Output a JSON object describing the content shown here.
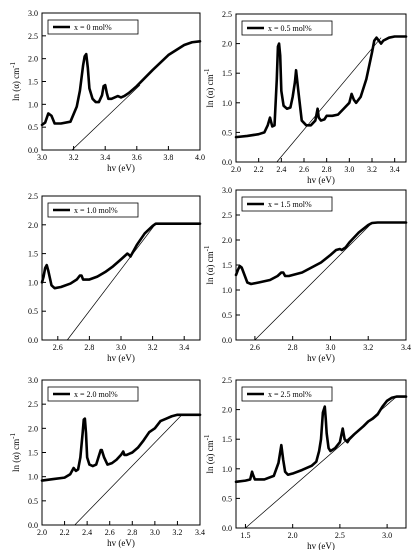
{
  "chart_data": [
    {
      "type": "line",
      "xlabel": "hv (eV)",
      "ylabel": "ln (α) cm",
      "ylabel_sup": "-1",
      "legend": {
        "label": "x = 0 mol%",
        "placement": "top-left"
      },
      "xlim": [
        3.0,
        4.0
      ],
      "ylim": [
        0.0,
        3.0
      ],
      "xticks": [
        "3.0",
        "3.2",
        "3.4",
        "3.6",
        "3.8",
        "4.0"
      ],
      "yticks": [
        "0.0",
        "0.5",
        "1.0",
        "1.5",
        "2.0",
        "2.5",
        "3.0"
      ],
      "series": [
        {
          "x": [
            3.0,
            3.02,
            3.04,
            3.06,
            3.08,
            3.12,
            3.18,
            3.22,
            3.24,
            3.26,
            3.27,
            3.28,
            3.29,
            3.3,
            3.32,
            3.34,
            3.36,
            3.38,
            3.39,
            3.4,
            3.41,
            3.42,
            3.44,
            3.46,
            3.48,
            3.5,
            3.52,
            3.55,
            3.6,
            3.7,
            3.8,
            3.9,
            3.95,
            4.0
          ],
          "y": [
            0.55,
            0.6,
            0.8,
            0.75,
            0.58,
            0.58,
            0.62,
            0.95,
            1.3,
            1.85,
            2.05,
            2.1,
            1.8,
            1.35,
            1.12,
            1.05,
            1.05,
            1.2,
            1.4,
            1.42,
            1.25,
            1.12,
            1.12,
            1.15,
            1.18,
            1.15,
            1.18,
            1.25,
            1.4,
            1.75,
            2.08,
            2.3,
            2.36,
            2.38
          ]
        }
      ],
      "fit_line": {
        "x": [
          3.19,
          3.62
        ],
        "y": [
          0.0,
          1.42
        ]
      }
    },
    {
      "type": "line",
      "xlabel": "hv (eV)",
      "ylabel": "ln (α) cm",
      "ylabel_sup": "-1",
      "legend": {
        "label": "x = 0.5 mol%",
        "placement": "top-left"
      },
      "xlim": [
        2.0,
        3.5
      ],
      "ylim": [
        0.0,
        2.5
      ],
      "xticks": [
        "2.0",
        "2.2",
        "2.4",
        "2.6",
        "2.8",
        "3.0",
        "3.2",
        "3.4"
      ],
      "yticks": [
        "0.0",
        "0.5",
        "1.0",
        "1.5",
        "2.0",
        "2.5"
      ],
      "series": [
        {
          "x": [
            2.0,
            2.1,
            2.2,
            2.25,
            2.28,
            2.3,
            2.32,
            2.34,
            2.36,
            2.37,
            2.38,
            2.39,
            2.4,
            2.42,
            2.45,
            2.48,
            2.5,
            2.52,
            2.53,
            2.55,
            2.58,
            2.62,
            2.66,
            2.7,
            2.72,
            2.73,
            2.75,
            2.78,
            2.8,
            2.85,
            2.9,
            2.95,
            3.0,
            3.02,
            3.04,
            3.06,
            3.1,
            3.15,
            3.2,
            3.22,
            3.24,
            3.26,
            3.28,
            3.3,
            3.35,
            3.4,
            3.5
          ],
          "y": [
            0.42,
            0.44,
            0.47,
            0.5,
            0.62,
            0.75,
            0.6,
            0.62,
            1.4,
            1.95,
            2.0,
            1.8,
            1.2,
            0.95,
            0.9,
            0.92,
            1.1,
            1.35,
            1.55,
            1.2,
            0.7,
            0.62,
            0.62,
            0.7,
            0.9,
            0.75,
            0.7,
            0.72,
            0.78,
            0.78,
            0.8,
            0.9,
            1.0,
            1.15,
            1.05,
            1.0,
            1.1,
            1.4,
            1.85,
            2.05,
            2.1,
            2.05,
            2.0,
            2.05,
            2.1,
            2.12,
            2.12
          ]
        }
      ],
      "fit_line": {
        "x": [
          2.36,
          3.28
        ],
        "y": [
          0.0,
          2.1
        ]
      }
    },
    {
      "type": "line",
      "xlabel": "hv (eV)",
      "ylabel": "",
      "legend": {
        "label": "x = 1.0 mol%",
        "placement": "top-left"
      },
      "xlim": [
        2.5,
        3.5
      ],
      "ylim": [
        0.0,
        2.5
      ],
      "xticks": [
        "2.6",
        "2.8",
        "3.0",
        "3.2",
        "3.4"
      ],
      "yticks": [
        "0.0",
        "0.5",
        "1.0",
        "1.5",
        "2.0",
        "2.5"
      ],
      "series": [
        {
          "x": [
            2.5,
            2.51,
            2.52,
            2.53,
            2.54,
            2.56,
            2.58,
            2.62,
            2.68,
            2.72,
            2.74,
            2.75,
            2.76,
            2.78,
            2.8,
            2.85,
            2.9,
            2.95,
            3.0,
            3.02,
            3.04,
            3.05,
            3.06,
            3.08,
            3.1,
            3.15,
            3.2,
            3.22,
            3.24,
            3.3,
            3.4,
            3.5
          ],
          "y": [
            1.0,
            1.1,
            1.25,
            1.3,
            1.2,
            0.95,
            0.9,
            0.92,
            0.98,
            1.05,
            1.12,
            1.12,
            1.05,
            1.05,
            1.05,
            1.1,
            1.18,
            1.28,
            1.4,
            1.45,
            1.5,
            1.48,
            1.45,
            1.55,
            1.65,
            1.85,
            1.98,
            2.02,
            2.02,
            2.02,
            2.02,
            2.02
          ]
        }
      ],
      "fit_line": {
        "x": [
          2.66,
          3.22
        ],
        "y": [
          0.0,
          2.02
        ]
      }
    },
    {
      "type": "line",
      "xlabel": "hv (eV)",
      "ylabel": "ln (α) cm",
      "ylabel_sup": "-1",
      "legend": {
        "label": "x = 1.5 mol%",
        "placement": "top-left"
      },
      "xlim": [
        2.5,
        3.4
      ],
      "ylim": [
        0.0,
        3.0
      ],
      "xticks": [
        "2.6",
        "2.8",
        "3.0",
        "3.2",
        "3.4"
      ],
      "yticks": [
        "0.0",
        "0.5",
        "1.0",
        "1.5",
        "2.0",
        "2.5",
        "3.0"
      ],
      "series": [
        {
          "x": [
            2.5,
            2.51,
            2.52,
            2.53,
            2.54,
            2.56,
            2.58,
            2.62,
            2.68,
            2.72,
            2.74,
            2.75,
            2.76,
            2.78,
            2.8,
            2.85,
            2.9,
            2.95,
            3.0,
            3.03,
            3.05,
            3.06,
            3.08,
            3.1,
            3.15,
            3.2,
            3.22,
            3.25,
            3.3,
            3.4
          ],
          "y": [
            1.3,
            1.4,
            1.48,
            1.45,
            1.35,
            1.15,
            1.12,
            1.15,
            1.2,
            1.28,
            1.35,
            1.35,
            1.28,
            1.28,
            1.3,
            1.35,
            1.45,
            1.55,
            1.7,
            1.8,
            1.82,
            1.8,
            1.85,
            1.95,
            2.15,
            2.3,
            2.34,
            2.35,
            2.35,
            2.35
          ]
        }
      ],
      "fit_line": {
        "x": [
          2.6,
          3.22
        ],
        "y": [
          0.0,
          2.34
        ]
      }
    },
    {
      "type": "line",
      "xlabel": "hv (eV)",
      "ylabel": "ln (α) cm",
      "ylabel_sup": "-1",
      "legend": {
        "label": "x = 2.0 mol%",
        "placement": "top-left"
      },
      "xlim": [
        2.0,
        3.4
      ],
      "ylim": [
        0.0,
        3.0
      ],
      "xticks": [
        "2.0",
        "2.2",
        "2.4",
        "2.6",
        "2.8",
        "3.0",
        "3.2",
        "3.4"
      ],
      "yticks": [
        "0.0",
        "0.5",
        "1.0",
        "1.5",
        "2.0",
        "2.5",
        "3.0"
      ],
      "series": [
        {
          "x": [
            2.0,
            2.1,
            2.2,
            2.25,
            2.28,
            2.3,
            2.32,
            2.34,
            2.36,
            2.37,
            2.38,
            2.39,
            2.4,
            2.42,
            2.45,
            2.48,
            2.5,
            2.52,
            2.53,
            2.55,
            2.58,
            2.62,
            2.66,
            2.7,
            2.72,
            2.73,
            2.75,
            2.78,
            2.8,
            2.85,
            2.9,
            2.95,
            3.0,
            3.05,
            3.1,
            3.15,
            3.2,
            3.25,
            3.3,
            3.4
          ],
          "y": [
            0.92,
            0.95,
            0.98,
            1.05,
            1.18,
            1.12,
            1.15,
            1.4,
            1.9,
            2.18,
            2.2,
            1.9,
            1.4,
            1.25,
            1.22,
            1.25,
            1.4,
            1.55,
            1.55,
            1.4,
            1.25,
            1.28,
            1.35,
            1.45,
            1.52,
            1.45,
            1.45,
            1.48,
            1.5,
            1.6,
            1.75,
            1.92,
            2.0,
            2.15,
            2.2,
            2.25,
            2.28,
            2.28,
            2.28,
            2.28
          ]
        }
      ],
      "fit_line": {
        "x": [
          2.29,
          3.24
        ],
        "y": [
          0.0,
          2.28
        ]
      }
    },
    {
      "type": "line",
      "xlabel": "hv (eV)",
      "ylabel": "ln (α) cm",
      "ylabel_sup": "-1",
      "legend": {
        "label": "x = 2.5 mol%",
        "placement": "top-left"
      },
      "xlim": [
        1.4,
        3.2
      ],
      "ylim": [
        0.0,
        2.5
      ],
      "xticks": [
        "1.5",
        "2.0",
        "2.5",
        "3.0"
      ],
      "yticks": [
        "0.0",
        "0.5",
        "1.0",
        "1.5",
        "2.0",
        "2.5"
      ],
      "series": [
        {
          "x": [
            1.4,
            1.5,
            1.55,
            1.57,
            1.58,
            1.6,
            1.7,
            1.8,
            1.85,
            1.88,
            1.9,
            1.92,
            1.95,
            2.0,
            2.1,
            2.2,
            2.25,
            2.28,
            2.3,
            2.32,
            2.34,
            2.35,
            2.36,
            2.38,
            2.4,
            2.45,
            2.5,
            2.53,
            2.55,
            2.58,
            2.6,
            2.65,
            2.7,
            2.75,
            2.8,
            2.85,
            2.9,
            2.95,
            3.0,
            3.05,
            3.1,
            3.2
          ],
          "y": [
            0.78,
            0.8,
            0.82,
            0.95,
            0.9,
            0.82,
            0.82,
            0.88,
            1.1,
            1.4,
            1.15,
            0.95,
            0.9,
            0.92,
            0.98,
            1.05,
            1.12,
            1.3,
            1.5,
            1.95,
            2.05,
            1.85,
            1.6,
            1.35,
            1.3,
            1.35,
            1.45,
            1.68,
            1.5,
            1.45,
            1.5,
            1.58,
            1.65,
            1.72,
            1.8,
            1.85,
            1.92,
            2.05,
            2.15,
            2.2,
            2.22,
            2.22
          ]
        }
      ],
      "fit_line": {
        "x": [
          1.5,
          3.1
        ],
        "y": [
          0.0,
          2.22
        ]
      }
    }
  ]
}
